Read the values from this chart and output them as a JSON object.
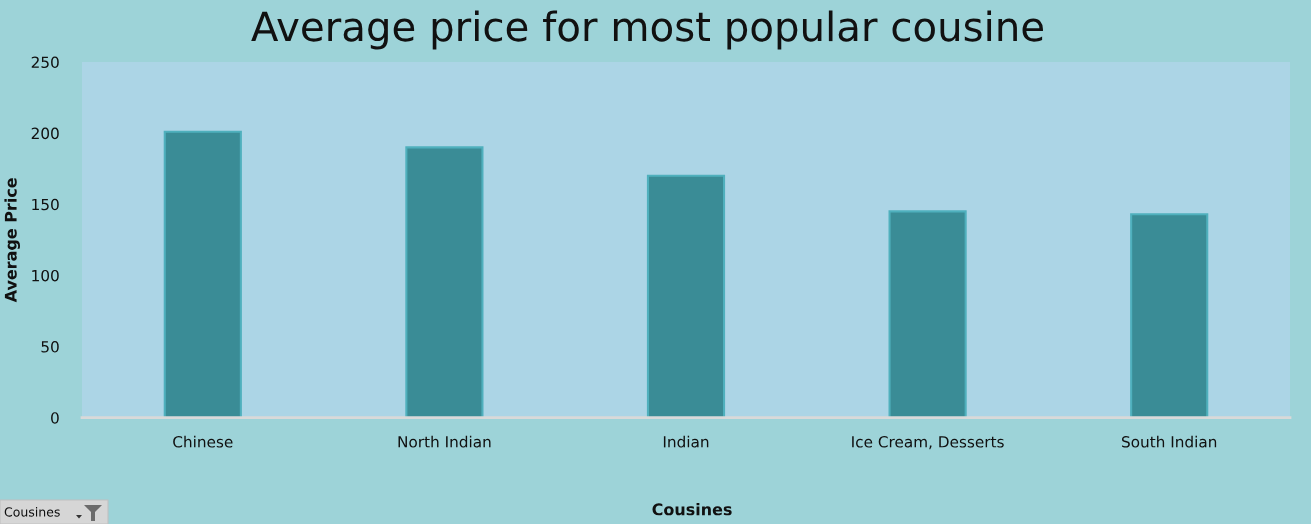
{
  "chart_data": {
    "type": "bar",
    "title": "Average price for most popular cousine",
    "xlabel": "Cousines",
    "ylabel": "Average Price",
    "categories": [
      "Chinese",
      "North Indian",
      "Indian",
      "Ice Cream, Desserts",
      "South Indian"
    ],
    "values": [
      201,
      190,
      170,
      145,
      143
    ],
    "color": "#3a8c96",
    "ylim": [
      0,
      250
    ],
    "yticks": [
      0,
      50,
      100,
      150,
      200,
      250
    ],
    "grid": false,
    "annotations": [
      "Cousines"
    ]
  }
}
